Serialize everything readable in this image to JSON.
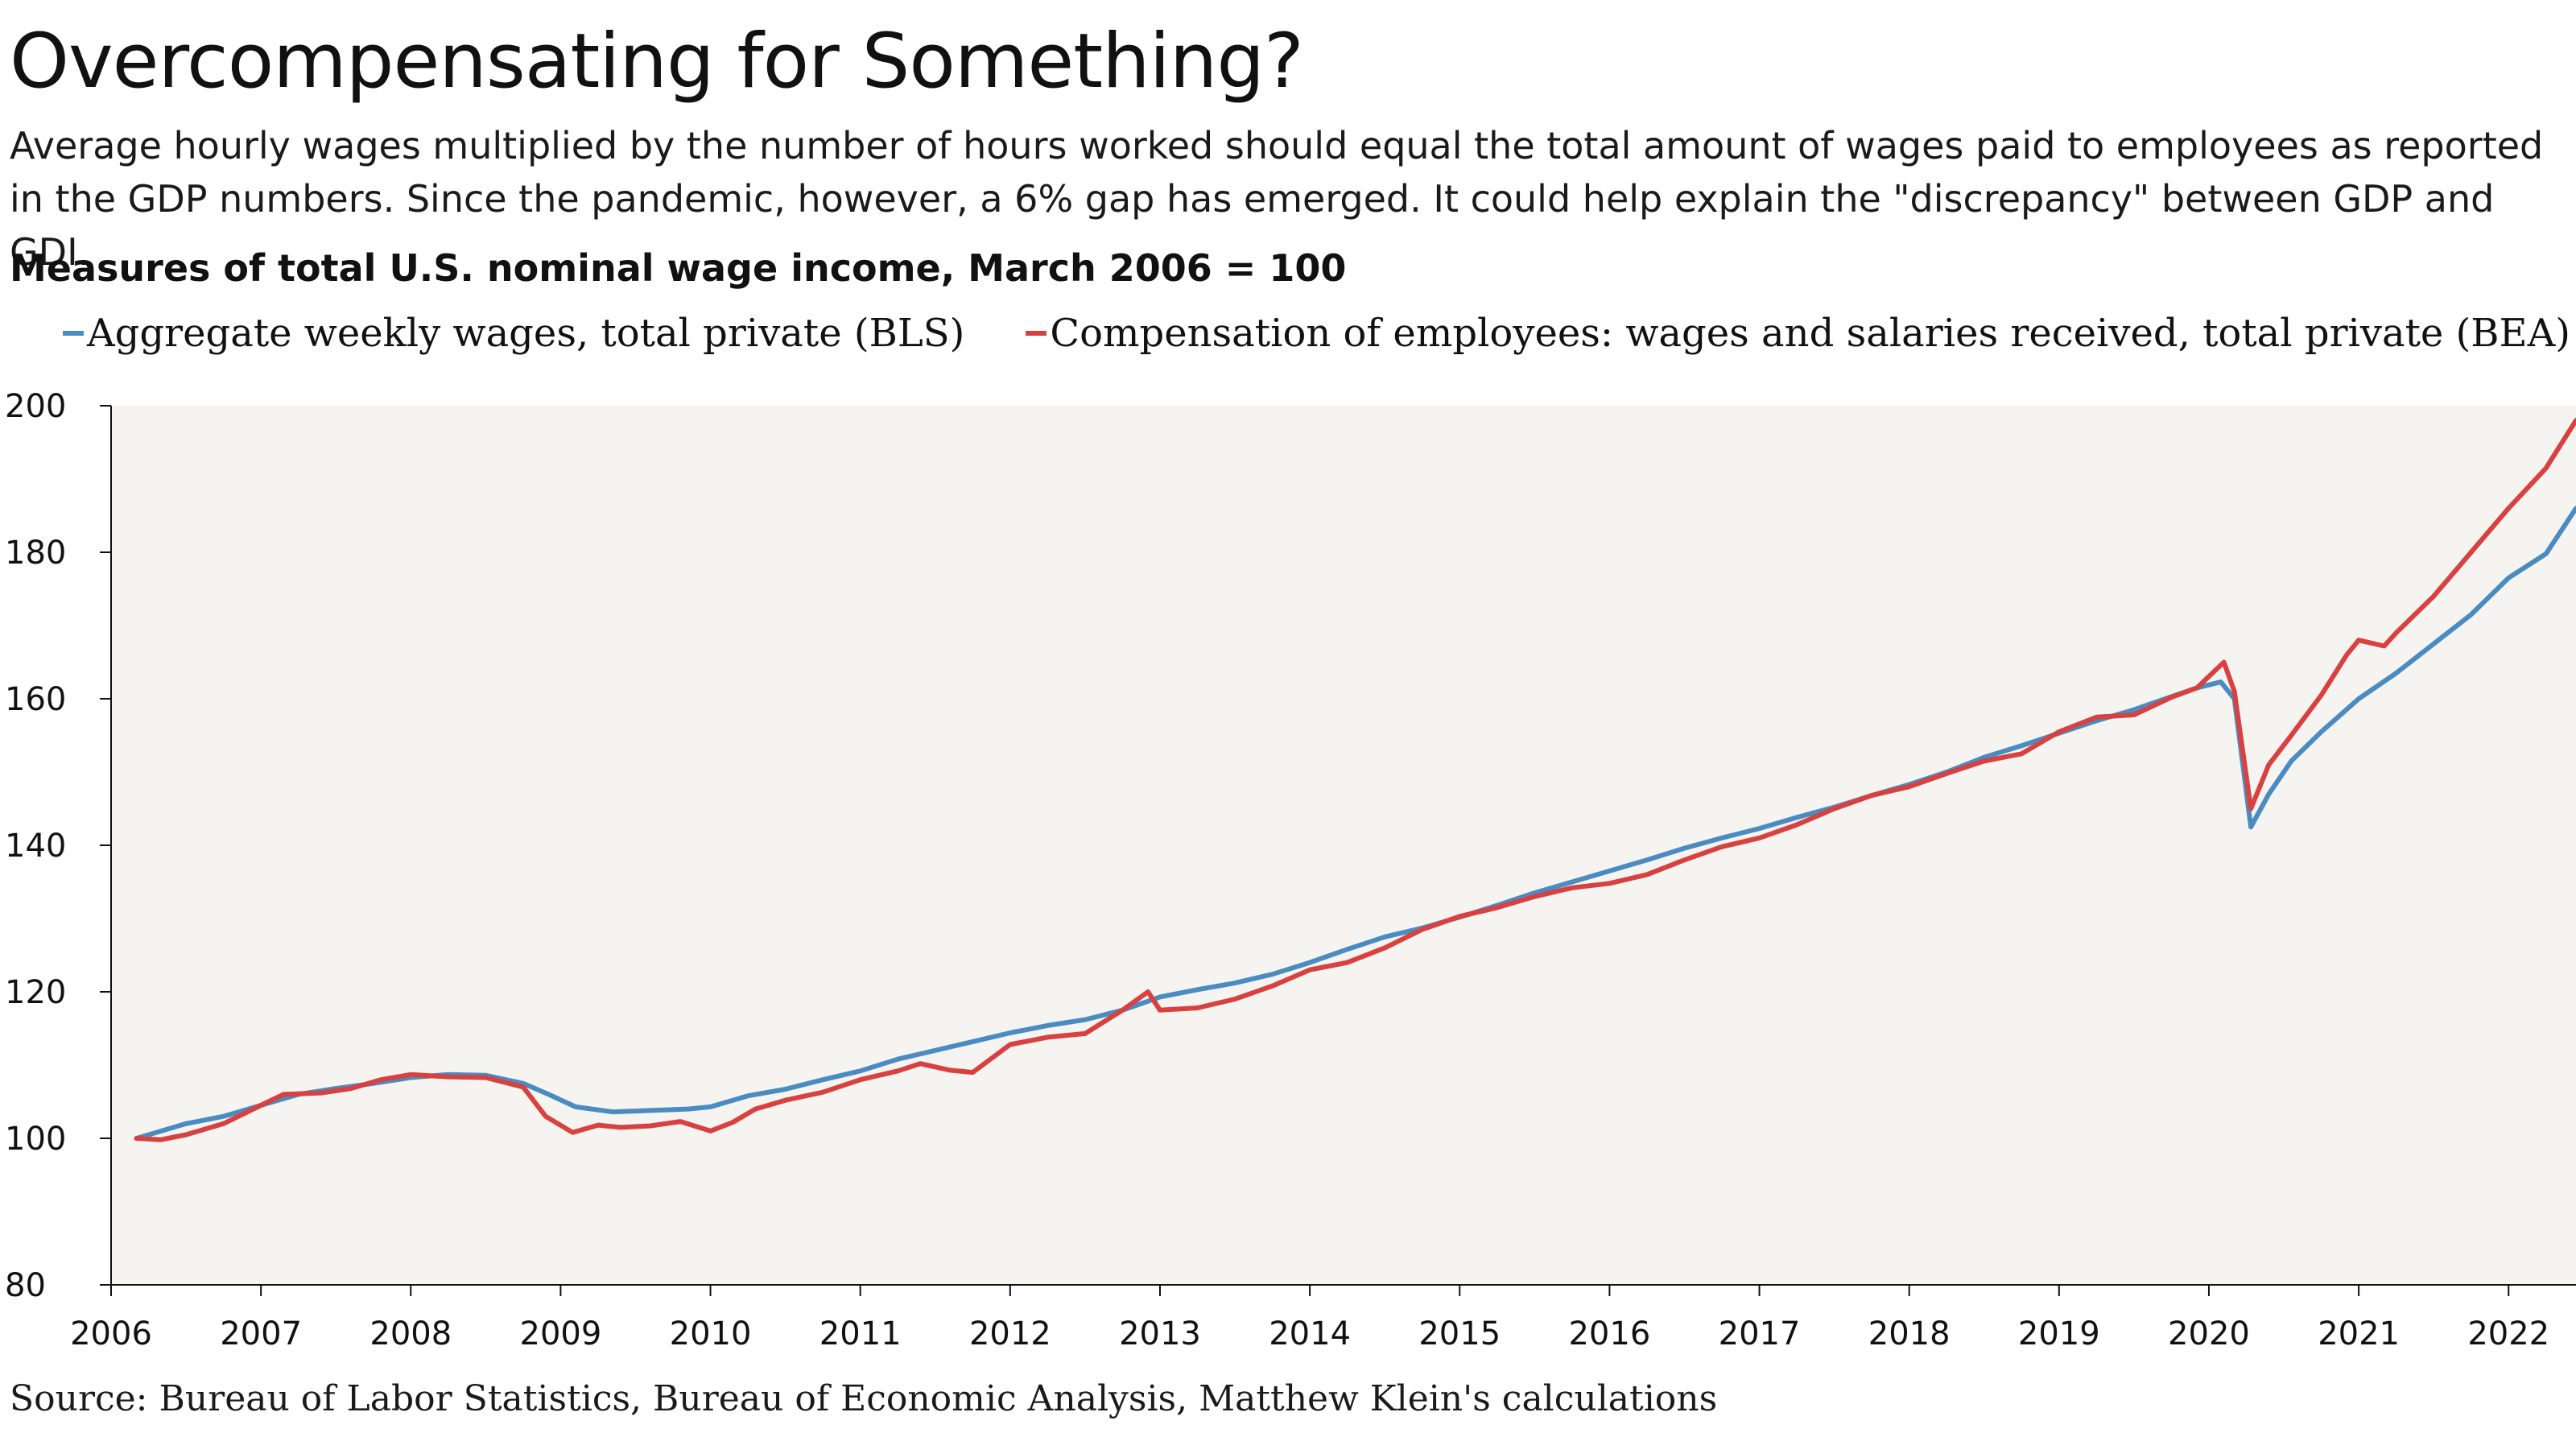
{
  "header": {
    "title": "Overcompensating for Something?",
    "subtitle": "Average hourly wages multiplied by the number of hours worked should equal the total amount of wages paid to employees as reported in the GDP numbers. Since the pandemic, however, a 6% gap has emerged. It could help explain the \"discrepancy\" between GDP and GDI.",
    "chart_title": "Measures of total U.S. nominal wage income, March 2006 = 100"
  },
  "source": "Source: Bureau of Labor Statistics, Bureau of Economic Analysis, Matthew Klein's calculations",
  "colors": {
    "plot_background": "#f5f4f1",
    "bls": "#4a8cc2",
    "bea": "#d94040"
  },
  "chart_data": {
    "type": "line",
    "ylim": [
      80,
      200
    ],
    "yticks": [
      80,
      100,
      120,
      140,
      160,
      180,
      200
    ],
    "xlim": [
      2006.0,
      2022.45
    ],
    "xticks": [
      "2006",
      "2007",
      "2008",
      "2009",
      "2010",
      "2011",
      "2012",
      "2013",
      "2014",
      "2015",
      "2016",
      "2017",
      "2018",
      "2019",
      "2020",
      "2021",
      "2022"
    ],
    "grid": false,
    "legend_position": "top-left",
    "series": [
      {
        "name": "Aggregate weekly wages, total private (BLS)",
        "color": "#4a8cc2",
        "points": [
          [
            2006.17,
            100.0
          ],
          [
            2006.5,
            102.0
          ],
          [
            2006.75,
            103.0
          ],
          [
            2007.0,
            104.5
          ],
          [
            2007.25,
            106.0
          ],
          [
            2007.5,
            106.8
          ],
          [
            2007.75,
            107.5
          ],
          [
            2008.0,
            108.3
          ],
          [
            2008.25,
            108.7
          ],
          [
            2008.5,
            108.6
          ],
          [
            2008.75,
            107.5
          ],
          [
            2008.92,
            106.0
          ],
          [
            2009.1,
            104.3
          ],
          [
            2009.35,
            103.6
          ],
          [
            2009.6,
            103.8
          ],
          [
            2009.85,
            104.0
          ],
          [
            2010.0,
            104.3
          ],
          [
            2010.25,
            105.8
          ],
          [
            2010.5,
            106.7
          ],
          [
            2010.75,
            108.0
          ],
          [
            2011.0,
            109.2
          ],
          [
            2011.25,
            110.8
          ],
          [
            2011.5,
            112.0
          ],
          [
            2011.75,
            113.2
          ],
          [
            2012.0,
            114.4
          ],
          [
            2012.25,
            115.4
          ],
          [
            2012.5,
            116.2
          ],
          [
            2012.75,
            117.5
          ],
          [
            2013.0,
            119.3
          ],
          [
            2013.25,
            120.3
          ],
          [
            2013.5,
            121.2
          ],
          [
            2013.75,
            122.4
          ],
          [
            2014.0,
            124.0
          ],
          [
            2014.25,
            125.8
          ],
          [
            2014.5,
            127.5
          ],
          [
            2014.75,
            128.7
          ],
          [
            2015.0,
            130.2
          ],
          [
            2015.25,
            131.8
          ],
          [
            2015.5,
            133.5
          ],
          [
            2015.75,
            135.0
          ],
          [
            2016.0,
            136.5
          ],
          [
            2016.25,
            138.0
          ],
          [
            2016.5,
            139.6
          ],
          [
            2016.75,
            141.0
          ],
          [
            2017.0,
            142.3
          ],
          [
            2017.25,
            143.8
          ],
          [
            2017.5,
            145.2
          ],
          [
            2017.75,
            146.8
          ],
          [
            2018.0,
            148.3
          ],
          [
            2018.25,
            150.0
          ],
          [
            2018.5,
            152.0
          ],
          [
            2018.75,
            153.6
          ],
          [
            2019.0,
            155.3
          ],
          [
            2019.25,
            157.0
          ],
          [
            2019.5,
            158.5
          ],
          [
            2019.75,
            160.3
          ],
          [
            2019.92,
            161.5
          ],
          [
            2020.08,
            162.3
          ],
          [
            2020.17,
            160.0
          ],
          [
            2020.28,
            142.5
          ],
          [
            2020.4,
            147.0
          ],
          [
            2020.55,
            151.5
          ],
          [
            2020.75,
            155.5
          ],
          [
            2021.0,
            160.0
          ],
          [
            2021.25,
            163.5
          ],
          [
            2021.5,
            167.5
          ],
          [
            2021.75,
            171.5
          ],
          [
            2022.0,
            176.5
          ],
          [
            2022.25,
            179.8
          ],
          [
            2022.45,
            186.0
          ]
        ]
      },
      {
        "name": "Compensation of employees: wages and salaries received, total private (BEA)",
        "color": "#d94040",
        "points": [
          [
            2006.17,
            100.0
          ],
          [
            2006.33,
            99.8
          ],
          [
            2006.5,
            100.5
          ],
          [
            2006.75,
            102.0
          ],
          [
            2007.0,
            104.5
          ],
          [
            2007.15,
            106.0
          ],
          [
            2007.4,
            106.2
          ],
          [
            2007.6,
            106.8
          ],
          [
            2007.8,
            108.0
          ],
          [
            2008.0,
            108.7
          ],
          [
            2008.25,
            108.4
          ],
          [
            2008.5,
            108.3
          ],
          [
            2008.75,
            107.0
          ],
          [
            2008.9,
            103.0
          ],
          [
            2009.08,
            100.8
          ],
          [
            2009.25,
            101.8
          ],
          [
            2009.4,
            101.5
          ],
          [
            2009.6,
            101.7
          ],
          [
            2009.8,
            102.3
          ],
          [
            2010.0,
            101.0
          ],
          [
            2010.15,
            102.2
          ],
          [
            2010.3,
            104.0
          ],
          [
            2010.5,
            105.2
          ],
          [
            2010.75,
            106.3
          ],
          [
            2011.0,
            108.0
          ],
          [
            2011.25,
            109.2
          ],
          [
            2011.4,
            110.2
          ],
          [
            2011.6,
            109.3
          ],
          [
            2011.75,
            109.0
          ],
          [
            2012.0,
            112.8
          ],
          [
            2012.25,
            113.8
          ],
          [
            2012.5,
            114.3
          ],
          [
            2012.75,
            117.5
          ],
          [
            2012.92,
            120.0
          ],
          [
            2013.0,
            117.5
          ],
          [
            2013.25,
            117.8
          ],
          [
            2013.5,
            119.0
          ],
          [
            2013.75,
            120.8
          ],
          [
            2014.0,
            123.0
          ],
          [
            2014.25,
            124.0
          ],
          [
            2014.5,
            126.0
          ],
          [
            2014.75,
            128.5
          ],
          [
            2015.0,
            130.3
          ],
          [
            2015.25,
            131.5
          ],
          [
            2015.5,
            133.0
          ],
          [
            2015.75,
            134.2
          ],
          [
            2016.0,
            134.8
          ],
          [
            2016.25,
            136.0
          ],
          [
            2016.5,
            138.0
          ],
          [
            2016.75,
            139.8
          ],
          [
            2017.0,
            141.0
          ],
          [
            2017.25,
            142.8
          ],
          [
            2017.5,
            145.0
          ],
          [
            2017.75,
            146.8
          ],
          [
            2018.0,
            148.0
          ],
          [
            2018.25,
            149.8
          ],
          [
            2018.5,
            151.5
          ],
          [
            2018.75,
            152.5
          ],
          [
            2019.0,
            155.5
          ],
          [
            2019.25,
            157.5
          ],
          [
            2019.5,
            157.8
          ],
          [
            2019.75,
            160.2
          ],
          [
            2019.92,
            161.5
          ],
          [
            2020.1,
            165.0
          ],
          [
            2020.17,
            161.0
          ],
          [
            2020.28,
            145.0
          ],
          [
            2020.4,
            151.0
          ],
          [
            2020.55,
            155.0
          ],
          [
            2020.75,
            160.5
          ],
          [
            2020.92,
            166.0
          ],
          [
            2021.0,
            168.0
          ],
          [
            2021.17,
            167.2
          ],
          [
            2021.25,
            169.0
          ],
          [
            2021.5,
            174.0
          ],
          [
            2021.75,
            180.0
          ],
          [
            2022.0,
            186.0
          ],
          [
            2022.25,
            191.5
          ],
          [
            2022.45,
            198.0
          ]
        ]
      }
    ]
  }
}
